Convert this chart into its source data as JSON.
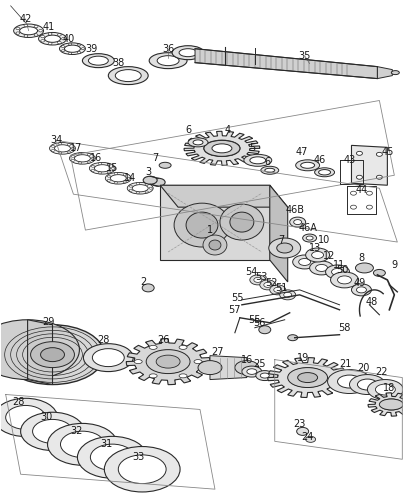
{
  "bg_color": "#ffffff",
  "line_color": "#2a2a2a",
  "label_color": "#1a1a1a",
  "fig_width": 4.04,
  "fig_height": 5.0,
  "dpi": 100,
  "shaft_color": "#555555",
  "gear_color": "#444444",
  "housing_color": "#666666"
}
